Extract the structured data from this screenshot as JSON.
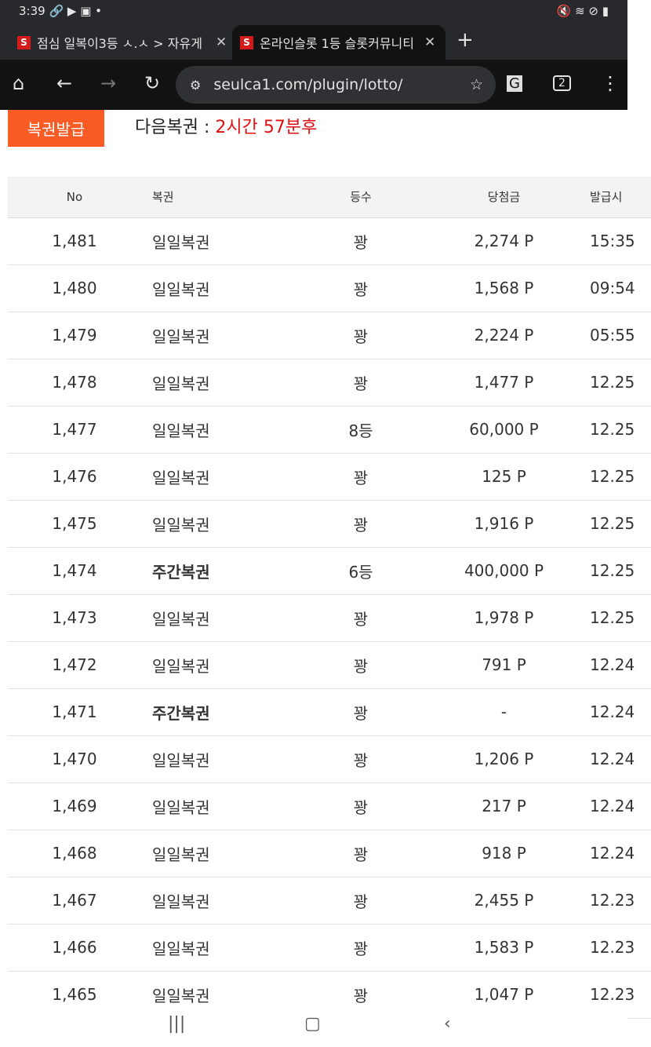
{
  "status": {
    "time": "3:39"
  },
  "tabs": [
    {
      "title": "점심 일복이3등 ㅅ.ㅅ > 자유게",
      "active": false
    },
    {
      "title": "온라인슬롯 1등 슬롯커뮤니티",
      "active": true
    }
  ],
  "toolbar": {
    "url": "seulca1.com/plugin/lotto/",
    "tab_count": "2"
  },
  "page": {
    "issue_button": "복권발급",
    "next_label": "다음복권 : ",
    "next_time": "2시간 57분후"
  },
  "table": {
    "headers": [
      "No",
      "복권",
      "등수",
      "당첨금",
      "발급시"
    ],
    "rows": [
      [
        "1,481",
        "일일복권",
        "꽝",
        "2,274 P",
        "15:35"
      ],
      [
        "1,480",
        "일일복권",
        "꽝",
        "1,568 P",
        "09:54"
      ],
      [
        "1,479",
        "일일복권",
        "꽝",
        "2,224 P",
        "05:55"
      ],
      [
        "1,478",
        "일일복권",
        "꽝",
        "1,477 P",
        "12.25"
      ],
      [
        "1,477",
        "일일복권",
        "8등",
        "60,000 P",
        "12.25"
      ],
      [
        "1,476",
        "일일복권",
        "꽝",
        "125 P",
        "12.25"
      ],
      [
        "1,475",
        "일일복권",
        "꽝",
        "1,916 P",
        "12.25"
      ],
      [
        "1,474",
        "주간복권",
        "6등",
        "400,000 P",
        "12.25"
      ],
      [
        "1,473",
        "일일복권",
        "꽝",
        "1,978 P",
        "12.25"
      ],
      [
        "1,472",
        "일일복권",
        "꽝",
        "791 P",
        "12.24"
      ],
      [
        "1,471",
        "주간복권",
        "꽝",
        "-",
        "12.24"
      ],
      [
        "1,470",
        "일일복권",
        "꽝",
        "1,206 P",
        "12.24"
      ],
      [
        "1,469",
        "일일복권",
        "꽝",
        "217 P",
        "12.24"
      ],
      [
        "1,468",
        "일일복권",
        "꽝",
        "918 P",
        "12.24"
      ],
      [
        "1,467",
        "일일복권",
        "꽝",
        "2,455 P",
        "12.23"
      ],
      [
        "1,466",
        "일일복권",
        "꽝",
        "1,583 P",
        "12.23"
      ],
      [
        "1,465",
        "일일복권",
        "꽝",
        "1,047 P",
        "12.23"
      ]
    ]
  },
  "colors": {
    "accent": "#fa5a24",
    "countdown": "#e01010"
  }
}
